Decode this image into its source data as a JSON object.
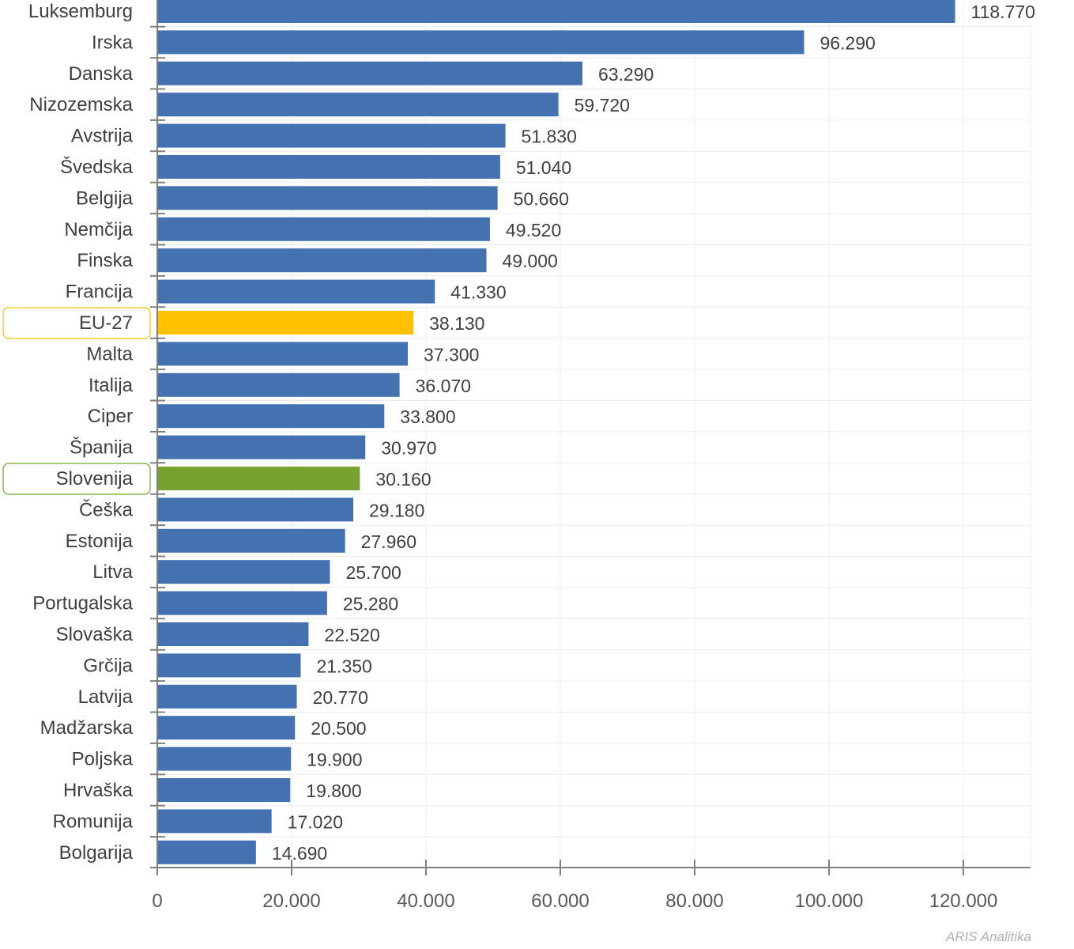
{
  "chart_data": {
    "type": "bar",
    "orientation": "horizontal",
    "title": "",
    "xlabel": "",
    "ylabel": "",
    "categories": [
      "Luksemburg",
      "Irska",
      "Danska",
      "Nizozemska",
      "Avstrija",
      "Švedska",
      "Belgija",
      "Nemčija",
      "Finska",
      "Francija",
      "EU-27",
      "Malta",
      "Italija",
      "Ciper",
      "Španija",
      "Slovenija",
      "Češka",
      "Estonija",
      "Litva",
      "Portugalska",
      "Slovaška",
      "Grčija",
      "Latvija",
      "Madžarska",
      "Poljska",
      "Hrvaška",
      "Romunija",
      "Bolgarija"
    ],
    "values": [
      118770,
      96290,
      63290,
      59720,
      51830,
      51040,
      50660,
      49520,
      49000,
      41330,
      38130,
      37300,
      36070,
      33800,
      30970,
      30160,
      29180,
      27960,
      25700,
      25280,
      22520,
      21350,
      20770,
      20500,
      19900,
      19800,
      17020,
      14690
    ],
    "value_labels": [
      "118.770",
      "96.290",
      "63.290",
      "59.720",
      "51.830",
      "51.040",
      "50.660",
      "49.520",
      "49.000",
      "41.330",
      "38.130",
      "37.300",
      "36.070",
      "33.800",
      "30.970",
      "30.160",
      "29.180",
      "27.960",
      "25.700",
      "25.280",
      "22.520",
      "21.350",
      "20.770",
      "20.500",
      "19.900",
      "19.800",
      "17.020",
      "14.690"
    ],
    "xlim": [
      0,
      130000
    ],
    "x_ticks": [
      0,
      20000,
      40000,
      60000,
      80000,
      100000,
      120000
    ],
    "x_tick_labels": [
      "0",
      "20.000",
      "40.000",
      "60.000",
      "80.000",
      "100.000",
      "120.000"
    ],
    "grid": true,
    "colors": {
      "default": "#4472b0",
      "highlight_eu": "#ffc000",
      "highlight_slovenia": "#77a22f"
    },
    "highlights": {
      "EU-27": "#ffc000",
      "Slovenija": "#77a22f"
    },
    "watermark": "ARIS Analitika"
  }
}
